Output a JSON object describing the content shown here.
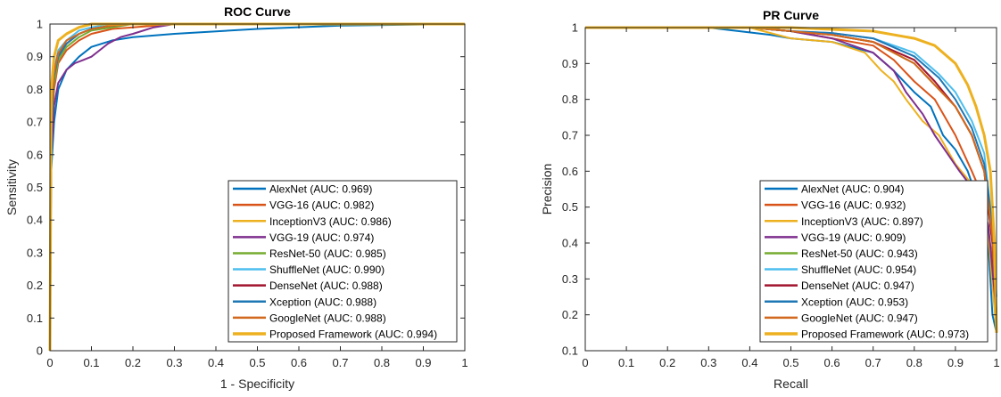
{
  "chart_data": [
    {
      "type": "line",
      "title": "ROC Curve",
      "xlabel": "1 - Specificity",
      "ylabel": "Sensitivity",
      "xlim": [
        0,
        1
      ],
      "ylim": [
        0,
        1
      ],
      "xticks": [
        "0",
        "0.1",
        "0.2",
        "0.3",
        "0.4",
        "0.5",
        "0.6",
        "0.7",
        "0.8",
        "0.9",
        "1"
      ],
      "yticks": [
        "0",
        "0.1",
        "0.2",
        "0.3",
        "0.4",
        "0.5",
        "0.6",
        "0.7",
        "0.8",
        "0.9",
        "1"
      ],
      "grid": false,
      "legend_position": "bottom-right",
      "series": [
        {
          "name": "AlexNet (AUC: 0.969)",
          "color": "#0072BD",
          "x": [
            0,
            0.003,
            0.01,
            0.02,
            0.04,
            0.07,
            0.1,
            0.15,
            0.2,
            0.3,
            0.5,
            0.7,
            1
          ],
          "y": [
            0,
            0.55,
            0.7,
            0.8,
            0.86,
            0.9,
            0.93,
            0.95,
            0.96,
            0.97,
            0.985,
            0.995,
            1
          ]
        },
        {
          "name": "VGG-16 (AUC: 0.982)",
          "color": "#D95319",
          "x": [
            0,
            0.003,
            0.01,
            0.02,
            0.04,
            0.07,
            0.1,
            0.15,
            0.2,
            0.3,
            1
          ],
          "y": [
            0,
            0.65,
            0.8,
            0.88,
            0.92,
            0.95,
            0.97,
            0.985,
            0.99,
            1,
            1
          ]
        },
        {
          "name": "InceptionV3 (AUC: 0.986)",
          "color": "#EDB120",
          "x": [
            0,
            0.003,
            0.01,
            0.02,
            0.04,
            0.07,
            0.1,
            0.15,
            0.2,
            1
          ],
          "y": [
            0,
            0.7,
            0.82,
            0.9,
            0.94,
            0.97,
            0.985,
            0.995,
            1,
            1
          ]
        },
        {
          "name": "VGG-19 (AUC: 0.974)",
          "color": "#7E2F8E",
          "x": [
            0,
            0.003,
            0.01,
            0.02,
            0.04,
            0.06,
            0.08,
            0.1,
            0.12,
            0.14,
            0.17,
            0.2,
            0.25,
            0.3,
            1
          ],
          "y": [
            0,
            0.6,
            0.75,
            0.82,
            0.86,
            0.88,
            0.89,
            0.9,
            0.92,
            0.94,
            0.96,
            0.97,
            0.99,
            1,
            1
          ]
        },
        {
          "name": "ResNet-50 (AUC: 0.985)",
          "color": "#77AC30",
          "x": [
            0,
            0.003,
            0.01,
            0.02,
            0.04,
            0.07,
            0.1,
            0.15,
            0.2,
            1
          ],
          "y": [
            0,
            0.68,
            0.82,
            0.89,
            0.93,
            0.96,
            0.98,
            0.99,
            1,
            1
          ]
        },
        {
          "name": "ShuffleNet (AUC: 0.990)",
          "color": "#4DBEEE",
          "x": [
            0,
            0.003,
            0.01,
            0.02,
            0.04,
            0.07,
            0.1,
            0.15,
            1
          ],
          "y": [
            0,
            0.75,
            0.86,
            0.92,
            0.95,
            0.98,
            0.99,
            1,
            1
          ]
        },
        {
          "name": "DenseNet (AUC: 0.988)",
          "color": "#A2142F",
          "x": [
            0,
            0.003,
            0.01,
            0.02,
            0.04,
            0.07,
            0.1,
            0.15,
            0.2,
            1
          ],
          "y": [
            0,
            0.72,
            0.85,
            0.91,
            0.94,
            0.97,
            0.985,
            0.995,
            1,
            1
          ]
        },
        {
          "name": "Xception (AUC: 0.988)",
          "color": "#1F77B4",
          "x": [
            0,
            0.003,
            0.01,
            0.02,
            0.04,
            0.07,
            0.1,
            0.15,
            0.2,
            1
          ],
          "y": [
            0,
            0.7,
            0.84,
            0.9,
            0.94,
            0.97,
            0.985,
            0.995,
            1,
            1
          ]
        },
        {
          "name": "GoogleNet (AUC: 0.988)",
          "color": "#D2691E",
          "x": [
            0,
            0.003,
            0.01,
            0.02,
            0.04,
            0.07,
            0.1,
            0.15,
            0.2,
            1
          ],
          "y": [
            0,
            0.72,
            0.85,
            0.91,
            0.95,
            0.97,
            0.985,
            0.995,
            1,
            1
          ]
        },
        {
          "name": "Proposed Framework (AUC: 0.994)",
          "color": "#EDB120",
          "x": [
            0,
            0.003,
            0.01,
            0.02,
            0.04,
            0.07,
            0.1,
            1
          ],
          "y": [
            0,
            0.8,
            0.9,
            0.95,
            0.97,
            0.99,
            1,
            1
          ]
        }
      ]
    },
    {
      "type": "line",
      "title": "PR Curve",
      "xlabel": "Recall",
      "ylabel": "Precision",
      "xlim": [
        0,
        1
      ],
      "ylim": [
        0.1,
        1
      ],
      "xticks": [
        "0",
        "0.1",
        "0.2",
        "0.3",
        "0.4",
        "0.5",
        "0.6",
        "0.7",
        "0.8",
        "0.9",
        "1"
      ],
      "yticks": [
        "0.1",
        "0.2",
        "0.3",
        "0.4",
        "0.5",
        "0.6",
        "0.7",
        "0.8",
        "0.9",
        "1"
      ],
      "grid": false,
      "legend_position": "bottom-right",
      "series": [
        {
          "name": "AlexNet (AUC: 0.904)",
          "color": "#0072BD",
          "x": [
            0,
            0.3,
            0.45,
            0.5,
            0.6,
            0.7,
            0.75,
            0.8,
            0.84,
            0.87,
            0.9,
            0.93,
            0.96,
            0.98,
            0.99,
            1
          ],
          "y": [
            1,
            1,
            0.98,
            0.97,
            0.96,
            0.93,
            0.88,
            0.82,
            0.78,
            0.7,
            0.66,
            0.6,
            0.5,
            0.4,
            0.2,
            0.15
          ]
        },
        {
          "name": "VGG-16 (AUC: 0.932)",
          "color": "#D95319",
          "x": [
            0,
            0.4,
            0.5,
            0.6,
            0.7,
            0.75,
            0.8,
            0.85,
            0.9,
            0.94,
            0.97,
            0.99,
            1
          ],
          "y": [
            1,
            1,
            0.99,
            0.97,
            0.95,
            0.91,
            0.85,
            0.8,
            0.7,
            0.6,
            0.52,
            0.35,
            0.15
          ]
        },
        {
          "name": "InceptionV3 (AUC: 0.897)",
          "color": "#EDB120",
          "x": [
            0,
            0.4,
            0.5,
            0.6,
            0.68,
            0.72,
            0.75,
            0.78,
            0.82,
            0.86,
            0.9,
            0.95,
            0.98,
            1
          ],
          "y": [
            1,
            1,
            0.97,
            0.96,
            0.93,
            0.88,
            0.85,
            0.8,
            0.74,
            0.7,
            0.62,
            0.55,
            0.42,
            0.15
          ]
        },
        {
          "name": "VGG-19 (AUC: 0.909)",
          "color": "#7E2F8E",
          "x": [
            0,
            0.4,
            0.5,
            0.6,
            0.7,
            0.75,
            0.78,
            0.82,
            0.85,
            0.88,
            0.91,
            0.93,
            0.96,
            0.98,
            1
          ],
          "y": [
            1,
            1,
            0.99,
            0.97,
            0.93,
            0.88,
            0.82,
            0.76,
            0.7,
            0.65,
            0.6,
            0.57,
            0.52,
            0.45,
            0.2
          ]
        },
        {
          "name": "ResNet-50 (AUC: 0.943)",
          "color": "#77AC30",
          "x": [
            0,
            0.4,
            0.5,
            0.6,
            0.7,
            0.8,
            0.85,
            0.9,
            0.94,
            0.97,
            0.99,
            1
          ],
          "y": [
            1,
            1,
            0.99,
            0.98,
            0.96,
            0.9,
            0.84,
            0.78,
            0.7,
            0.6,
            0.4,
            0.2
          ]
        },
        {
          "name": "ShuffleNet (AUC: 0.954)",
          "color": "#4DBEEE",
          "x": [
            0,
            0.4,
            0.5,
            0.6,
            0.7,
            0.8,
            0.86,
            0.9,
            0.94,
            0.97,
            0.99,
            1
          ],
          "y": [
            1,
            1,
            0.99,
            0.985,
            0.97,
            0.93,
            0.87,
            0.82,
            0.74,
            0.65,
            0.45,
            0.25
          ]
        },
        {
          "name": "DenseNet (AUC: 0.947)",
          "color": "#A2142F",
          "x": [
            0,
            0.4,
            0.5,
            0.6,
            0.7,
            0.8,
            0.85,
            0.9,
            0.94,
            0.97,
            0.99,
            1
          ],
          "y": [
            1,
            1,
            0.99,
            0.98,
            0.96,
            0.91,
            0.85,
            0.78,
            0.7,
            0.6,
            0.4,
            0.2
          ]
        },
        {
          "name": "Xception (AUC: 0.953)",
          "color": "#1F77B4",
          "x": [
            0,
            0.4,
            0.5,
            0.6,
            0.7,
            0.8,
            0.86,
            0.9,
            0.94,
            0.97,
            0.99,
            1
          ],
          "y": [
            1,
            1,
            0.99,
            0.985,
            0.97,
            0.92,
            0.86,
            0.8,
            0.72,
            0.62,
            0.45,
            0.2
          ]
        },
        {
          "name": "GoogleNet (AUC: 0.947)",
          "color": "#D2691E",
          "x": [
            0,
            0.4,
            0.5,
            0.6,
            0.7,
            0.8,
            0.85,
            0.9,
            0.94,
            0.97,
            0.99,
            1
          ],
          "y": [
            1,
            1,
            0.99,
            0.98,
            0.96,
            0.9,
            0.84,
            0.78,
            0.7,
            0.6,
            0.42,
            0.2
          ]
        },
        {
          "name": "Proposed Framework (AUC: 0.973)",
          "color": "#EDB120",
          "x": [
            0,
            0.5,
            0.6,
            0.7,
            0.8,
            0.85,
            0.9,
            0.93,
            0.95,
            0.97,
            0.985,
            0.995,
            1
          ],
          "y": [
            1,
            1,
            0.995,
            0.99,
            0.97,
            0.95,
            0.9,
            0.84,
            0.78,
            0.7,
            0.6,
            0.4,
            0.15
          ]
        }
      ]
    }
  ]
}
